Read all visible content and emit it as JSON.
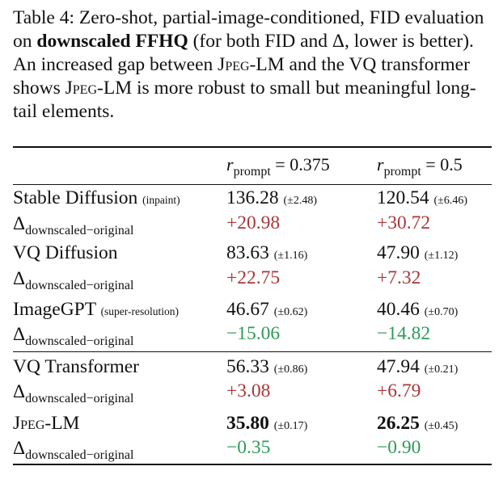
{
  "caption": {
    "label": "Table 4:",
    "text_a": "Zero-shot, partial-image-conditioned, FID evaluation on",
    "bold": "downscaled FFHQ",
    "text_b": "(for both FID and Δ, lower is better). An increased gap between",
    "jpeg_lm_1": "Jpeg-LM",
    "text_c": "and the VQ transformer shows",
    "jpeg_lm_2": "Jpeg-LM",
    "text_d": "is more robust to small but meaningful long-tail elements."
  },
  "header": {
    "col1": {
      "r": "r",
      "sub": "prompt",
      "eq": "= 0.375"
    },
    "col2": {
      "r": "r",
      "sub": "prompt",
      "eq": "= 0.5"
    }
  },
  "delta_label": {
    "symbol": "Δ",
    "sub": "downscaled−original"
  },
  "rows": [
    {
      "name": "Stable Diffusion",
      "note": "(inpaint)",
      "v1": "136.28",
      "s1": "(±2.48)",
      "v2": "120.54",
      "s2": "(±6.46)",
      "d1": "+20.98",
      "d2": "+30.72"
    },
    {
      "name": "VQ Diffusion",
      "note": "",
      "v1": "83.63",
      "s1": "(±1.16)",
      "v2": "47.90",
      "s2": "(±1.12)",
      "d1": "+22.75",
      "d2": "+7.32"
    },
    {
      "name": "ImageGPT",
      "note": "(super-resolution)",
      "v1": "46.67",
      "s1": "(±0.62)",
      "v2": "40.46",
      "s2": "(±0.70)",
      "d1": "−15.06",
      "d2": "−14.82"
    },
    {
      "name": "VQ Transformer",
      "note": "",
      "v1": "56.33",
      "s1": "(±0.86)",
      "v2": "47.94",
      "s2": "(±0.21)",
      "d1": "+3.08",
      "d2": "+6.79"
    },
    {
      "name": "Jpeg-LM",
      "note": "",
      "v1": "35.80",
      "s1": "(±0.17)",
      "v2": "26.25",
      "s2": "(±0.45)",
      "d1": "−0.35",
      "d2": "−0.90"
    }
  ],
  "colors": {
    "positive": "#a8373a",
    "negative": "#2e9a58"
  }
}
